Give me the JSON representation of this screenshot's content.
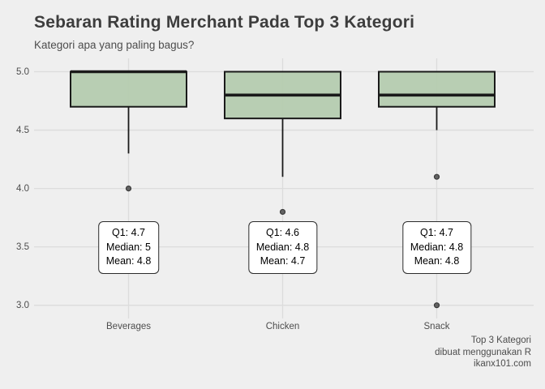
{
  "title": "Sebaran Rating Merchant Pada Top 3 Kategori",
  "subtitle": "Kategori apa yang paling bagus?",
  "caption": {
    "lines": [
      "Top 3 Kategori",
      "dibuat menggunakan R",
      "ikanx101.com"
    ]
  },
  "colors": {
    "background": "#efefef",
    "box_fill": "#b4cbaf",
    "box_border": "#1a1a1a",
    "gridline": "#dcdcdc",
    "outlier_fill": "#636363",
    "outlier_stroke": "#3a3a3a",
    "title_text": "#3d3d3d",
    "axis_text": "#4d4d4d"
  },
  "y_axis": {
    "ticks": [
      "5.0",
      "4.5",
      "4.0",
      "3.5",
      "3.0"
    ],
    "tick_values": [
      5.0,
      4.5,
      4.0,
      3.5,
      3.0
    ]
  },
  "chart_data": {
    "type": "boxplot",
    "title": "Sebaran Rating Merchant Pada Top 3 Kategori",
    "subtitle": "Kategori apa yang paling bagus?",
    "xlabel": "",
    "ylabel": "",
    "ylim": [
      3.0,
      5.0
    ],
    "grid": true,
    "categories": [
      "Beverages",
      "Chicken",
      "Snack"
    ],
    "series": [
      {
        "category": "Beverages",
        "q1": 4.7,
        "median": 5.0,
        "mean": 4.8,
        "q3": 5.0,
        "whisker_low": 4.3,
        "whisker_high": 5.0,
        "outliers": [
          4.0
        ],
        "label": {
          "q1": "Q1: 4.7",
          "median": "Median: 5",
          "mean": "Mean: 4.8"
        }
      },
      {
        "category": "Chicken",
        "q1": 4.6,
        "median": 4.8,
        "mean": 4.7,
        "q3": 5.0,
        "whisker_low": 4.1,
        "whisker_high": 5.0,
        "outliers": [
          3.8
        ],
        "label": {
          "q1": "Q1: 4.6",
          "median": "Median: 4.8",
          "mean": "Mean: 4.7"
        }
      },
      {
        "category": "Snack",
        "q1": 4.7,
        "median": 4.8,
        "mean": 4.8,
        "q3": 5.0,
        "whisker_low": 4.5,
        "whisker_high": 5.0,
        "outliers": [
          4.1,
          3.0
        ],
        "label": {
          "q1": "Q1: 4.7",
          "median": "Median: 4.8",
          "mean": "Mean: 4.8"
        }
      }
    ]
  }
}
